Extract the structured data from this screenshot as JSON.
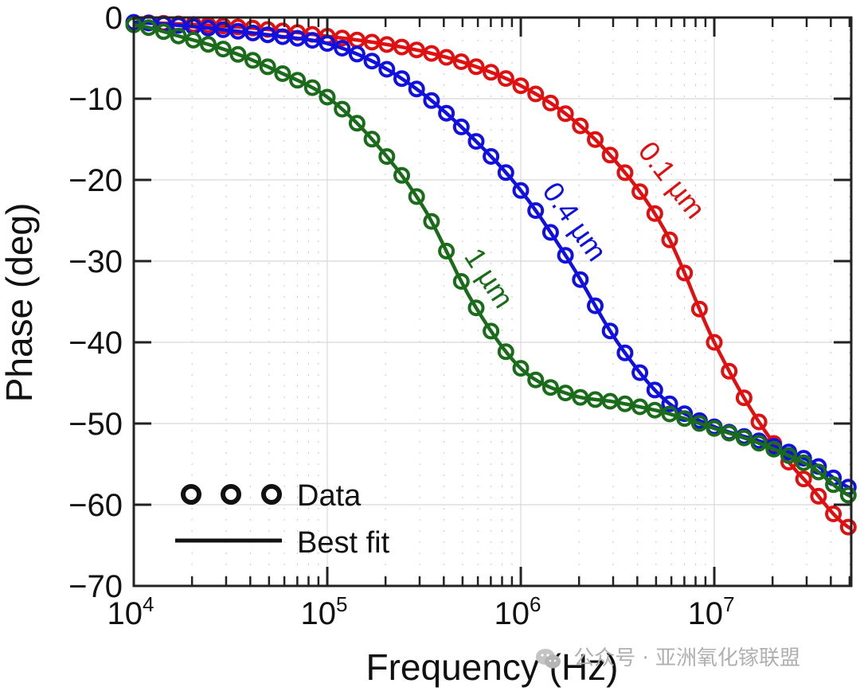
{
  "chart_data": {
    "type": "line",
    "title": "",
    "xlabel": "Frequency (Hz)",
    "ylabel": "Phase (deg)",
    "xscale": "log",
    "xlim": [
      10000,
      51000000
    ],
    "ylim": [
      -70,
      0
    ],
    "grid": true,
    "x_ticks": [
      {
        "value": 10000,
        "base": "10",
        "exp": "4"
      },
      {
        "value": 100000,
        "base": "10",
        "exp": "5"
      },
      {
        "value": 1000000,
        "base": "10",
        "exp": "6"
      },
      {
        "value": 10000000,
        "base": "10",
        "exp": "7"
      }
    ],
    "y_ticks": [
      {
        "value": 0,
        "label": "0"
      },
      {
        "value": -10,
        "label": "−10"
      },
      {
        "value": -20,
        "label": "−20"
      },
      {
        "value": -30,
        "label": "−30"
      },
      {
        "value": -40,
        "label": "−40"
      },
      {
        "value": -50,
        "label": "−50"
      },
      {
        "value": -60,
        "label": "−60"
      },
      {
        "value": -70,
        "label": "−70"
      }
    ],
    "legend": {
      "placement": "bottom-left",
      "entries": [
        {
          "label": "Data",
          "marker": "circle"
        },
        {
          "label": "Best fit",
          "marker": "line"
        }
      ]
    },
    "series": [
      {
        "name": "0.1 µm",
        "color": "#e01010",
        "label_text": "0.1 µm",
        "points_log10f_deg": [
          [
            4.0,
            -0.6
          ],
          [
            4.25,
            -0.8
          ],
          [
            4.5,
            -1.1
          ],
          [
            4.75,
            -1.6
          ],
          [
            5.0,
            -2.3
          ],
          [
            5.25,
            -3.1
          ],
          [
            5.5,
            -4.2
          ],
          [
            5.75,
            -5.9
          ],
          [
            6.0,
            -8.4
          ],
          [
            6.25,
            -12.2
          ],
          [
            6.5,
            -18.0
          ],
          [
            6.75,
            -26.5
          ],
          [
            7.0,
            -40.0
          ],
          [
            7.25,
            -50.5
          ],
          [
            7.5,
            -57.8
          ],
          [
            7.71,
            -63.0
          ]
        ]
      },
      {
        "name": "0.4 µm",
        "color": "#1010e0",
        "label_text": "0.4 µm",
        "points_log10f_deg": [
          [
            4.0,
            -0.6
          ],
          [
            4.25,
            -1.0
          ],
          [
            4.5,
            -1.6
          ],
          [
            4.75,
            -2.3
          ],
          [
            5.0,
            -3.2
          ],
          [
            5.25,
            -5.6
          ],
          [
            5.5,
            -9.5
          ],
          [
            5.75,
            -14.8
          ],
          [
            6.0,
            -21.3
          ],
          [
            6.25,
            -30.0
          ],
          [
            6.5,
            -40.0
          ],
          [
            6.75,
            -47.2
          ],
          [
            7.0,
            -50.4
          ],
          [
            7.25,
            -52.3
          ],
          [
            7.5,
            -54.7
          ],
          [
            7.71,
            -58.0
          ]
        ]
      },
      {
        "name": "1 µm",
        "color": "#1a6b1a",
        "label_text": "1 µm",
        "points_log10f_deg": [
          [
            4.0,
            -0.9
          ],
          [
            4.25,
            -2.4
          ],
          [
            4.5,
            -4.2
          ],
          [
            4.75,
            -6.7
          ],
          [
            5.0,
            -9.8
          ],
          [
            5.25,
            -15.5
          ],
          [
            5.5,
            -23.5
          ],
          [
            5.75,
            -35.0
          ],
          [
            6.0,
            -43.2
          ],
          [
            6.25,
            -46.4
          ],
          [
            6.5,
            -47.4
          ],
          [
            6.75,
            -48.7
          ],
          [
            7.0,
            -50.6
          ],
          [
            7.25,
            -52.6
          ],
          [
            7.5,
            -55.3
          ],
          [
            7.71,
            -59.0
          ]
        ]
      }
    ]
  },
  "watermark": {
    "text": "公众号 · 亚洲氧化镓联盟",
    "icon": "wechat-icon"
  }
}
